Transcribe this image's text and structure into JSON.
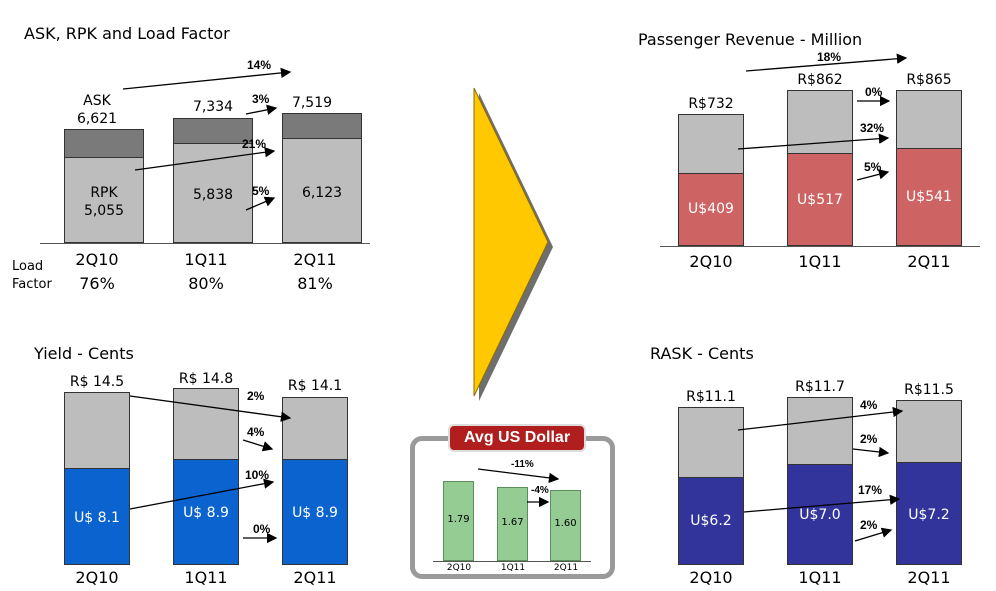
{
  "charts": {
    "ask_rpk": {
      "title": "ASK, RPK and Load Factor",
      "ask_label": "ASK",
      "rpk_label": "RPK",
      "load_factor_label": [
        "Load",
        "Factor"
      ],
      "categories": [
        "2Q10",
        "1Q11",
        "2Q11"
      ],
      "ask": [
        "6,621",
        "7,334",
        "7,519"
      ],
      "rpk": [
        "5,055",
        "5,838",
        "6,123"
      ],
      "load_factor": [
        "76%",
        "80%",
        "81%"
      ],
      "changes": {
        "ask_total": "14%",
        "ask_q": "3%",
        "rpk_total": "21%",
        "rpk_q": "5%"
      }
    },
    "passenger_revenue": {
      "title": "Passenger Revenue - Million",
      "categories": [
        "2Q10",
        "1Q11",
        "2Q11"
      ],
      "brl": [
        "R$732",
        "R$862",
        "R$865"
      ],
      "usd": [
        "U$409",
        "U$517",
        "U$541"
      ],
      "changes": {
        "brl_total": "18%",
        "brl_q": "0%",
        "usd_total": "32%",
        "usd_q": "5%"
      }
    },
    "yield": {
      "title": "Yield - Cents",
      "categories": [
        "2Q10",
        "1Q11",
        "2Q11"
      ],
      "brl": [
        "R$ 14.5",
        "R$ 14.8",
        "R$ 14.1"
      ],
      "usd": [
        "U$ 8.1",
        "U$ 8.9",
        "U$ 8.9"
      ],
      "changes": {
        "brl_total": "2%",
        "brl_q": "4%",
        "usd_total": "10%",
        "usd_q": "0%"
      }
    },
    "rask": {
      "title": "RASK - Cents",
      "categories": [
        "2Q10",
        "1Q11",
        "2Q11"
      ],
      "brl": [
        "R$11.1",
        "R$11.7",
        "R$11.5"
      ],
      "usd": [
        "U$6.2",
        "U$7.0",
        "U$7.2"
      ],
      "changes": {
        "brl_total": "4%",
        "brl_q": "2%",
        "usd_total": "17%",
        "usd_q": "2%"
      }
    },
    "usd": {
      "title": "Avg US Dollar",
      "categories": [
        "2Q10",
        "1Q11",
        "2Q11"
      ],
      "values": [
        "1.79",
        "1.67",
        "1.60"
      ],
      "changes": {
        "total": "-11%",
        "q": "-4%"
      }
    }
  },
  "chart_data": [
    {
      "type": "bar",
      "title": "ASK, RPK and Load Factor",
      "categories": [
        "2Q10",
        "1Q11",
        "2Q11"
      ],
      "series": [
        {
          "name": "ASK",
          "values": [
            6621,
            7334,
            7519
          ]
        },
        {
          "name": "RPK",
          "values": [
            5055,
            5838,
            6123
          ]
        }
      ],
      "load_factor": [
        76,
        80,
        81
      ]
    },
    {
      "type": "bar",
      "title": "Passenger Revenue - Million",
      "categories": [
        "2Q10",
        "1Q11",
        "2Q11"
      ],
      "series": [
        {
          "values": [
            732,
            862,
            865
          ]
        },
        {
          "values": [
            409,
            517,
            541
          ]
        }
      ]
    },
    {
      "type": "bar",
      "title": "Yield - Cents",
      "categories": [
        "2Q10",
        "1Q11",
        "2Q11"
      ],
      "series": [
        {
          "values": [
            14.5,
            14.8,
            14.1
          ]
        },
        {
          "values": [
            8.1,
            8.9,
            8.9
          ]
        }
      ]
    },
    {
      "type": "bar",
      "title": "RASK - Cents",
      "categories": [
        "2Q10",
        "1Q11",
        "2Q11"
      ],
      "series": [
        {
          "values": [
            11.1,
            11.7,
            11.5
          ]
        },
        {
          "values": [
            6.2,
            7.0,
            7.2
          ]
        }
      ]
    },
    {
      "type": "bar",
      "title": "Avg US Dollar",
      "categories": [
        "2Q10",
        "1Q11",
        "2Q11"
      ],
      "values": [
        1.79,
        1.67,
        1.6
      ]
    }
  ],
  "colors": {
    "gray_light": "#bdbdbd",
    "gray_dark": "#7a7a7a",
    "red": "#cd6363",
    "blue": "#0a63cf",
    "navy": "#32349b",
    "green": "#94cc94",
    "arrow_yellow": "#ffc800",
    "badge_red": "#b01e1e"
  }
}
